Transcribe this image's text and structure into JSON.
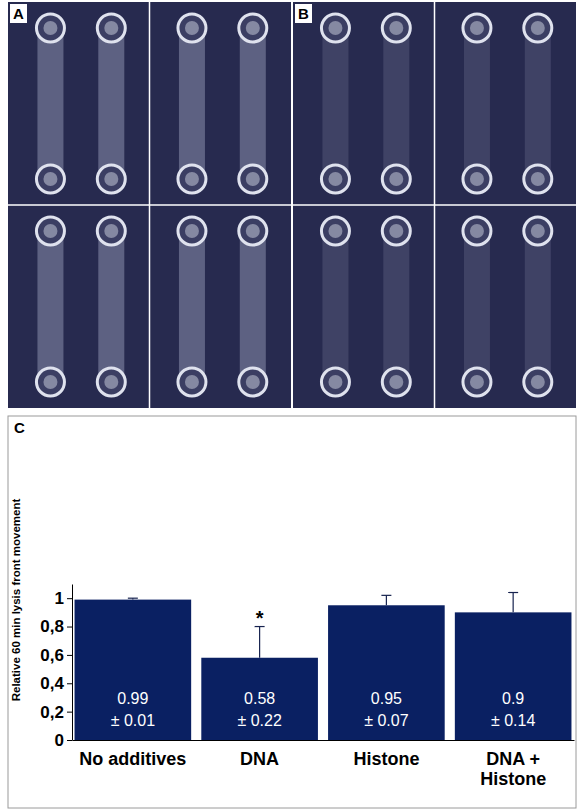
{
  "photo_panels": [
    {
      "label": "A"
    },
    {
      "label": "B"
    }
  ],
  "chart_data": {
    "type": "bar",
    "panel_label": "C",
    "y_label": "Relative 60 min lysis front movement",
    "categories": [
      "No additives",
      "DNA",
      "Histone",
      "DNA + Histone"
    ],
    "values": [
      0.99,
      0.58,
      0.95,
      0.9
    ],
    "errors": [
      0.01,
      0.22,
      0.07,
      0.14
    ],
    "error_labels": [
      "± 0.01",
      "± 0.22",
      "± 0.07",
      "± 0.14"
    ],
    "color": "#0a2062",
    "ylim": [
      0,
      1.1
    ],
    "yticks": [
      0,
      {
        "value": 0.2,
        "label": "0,2"
      },
      {
        "value": 0.4,
        "label": "0,4"
      },
      {
        "value": 0.6,
        "label": "0,6"
      },
      {
        "value": 0.8,
        "label": "0,8"
      },
      1
    ],
    "data_labels": true,
    "grid": false,
    "annotations": [
      {
        "text": "*",
        "category": "DNA"
      }
    ]
  }
}
